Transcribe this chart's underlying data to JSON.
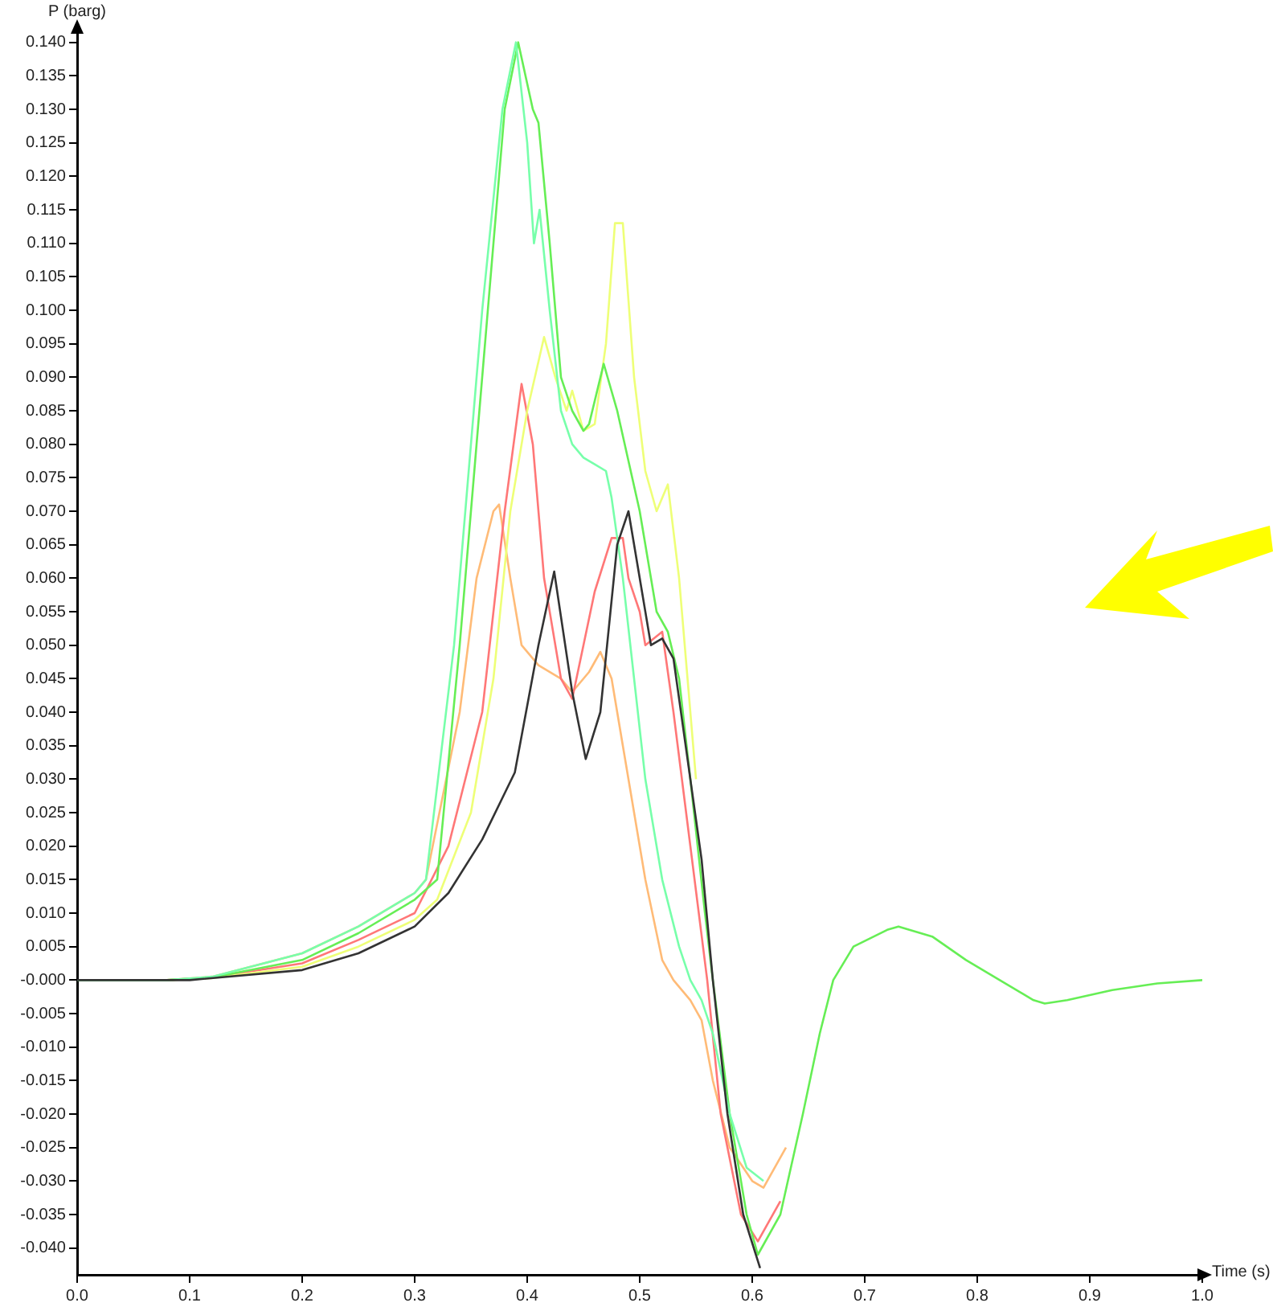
{
  "chart_data": {
    "type": "line",
    "xlabel": "Time (s)",
    "ylabel": "P (barg)",
    "xlim": [
      0,
      1.0
    ],
    "ylim": [
      -0.044,
      0.142
    ],
    "xticks": [
      {
        "value": 0,
        "label": "0.0"
      },
      0.1,
      0.2,
      0.3,
      0.4,
      0.5,
      0.6,
      0.7,
      0.8,
      0.9,
      {
        "value": 1,
        "label": "1.0"
      }
    ],
    "yticks": [
      {
        "value": -0.04,
        "label": "-0.040"
      },
      {
        "value": -0.035,
        "label": "-0.035"
      },
      {
        "value": -0.03,
        "label": "-0.030"
      },
      {
        "value": -0.025,
        "label": "-0.025"
      },
      {
        "value": -0.02,
        "label": "-0.020"
      },
      {
        "value": -0.015,
        "label": "-0.015"
      },
      {
        "value": -0.01,
        "label": "-0.010"
      },
      {
        "value": -0.005,
        "label": "-0.005"
      },
      {
        "value": 0,
        "label": "-0.000"
      },
      {
        "value": 0.005,
        "label": "0.005"
      },
      {
        "value": 0.01,
        "label": "0.010"
      },
      {
        "value": 0.015,
        "label": "0.015"
      },
      {
        "value": 0.02,
        "label": "0.020"
      },
      {
        "value": 0.025,
        "label": "0.025"
      },
      {
        "value": 0.03,
        "label": "0.030"
      },
      {
        "value": 0.035,
        "label": "0.035"
      },
      {
        "value": 0.04,
        "label": "0.040"
      },
      {
        "value": 0.045,
        "label": "0.045"
      },
      {
        "value": 0.05,
        "label": "0.050"
      },
      {
        "value": 0.055,
        "label": "0.055"
      },
      {
        "value": 0.06,
        "label": "0.060"
      },
      {
        "value": 0.065,
        "label": "0.065"
      },
      {
        "value": 0.07,
        "label": "0.070"
      },
      {
        "value": 0.075,
        "label": "0.075"
      },
      {
        "value": 0.08,
        "label": "0.080"
      },
      {
        "value": 0.085,
        "label": "0.085"
      },
      {
        "value": 0.09,
        "label": "0.090"
      },
      {
        "value": 0.095,
        "label": "0.095"
      },
      {
        "value": 0.1,
        "label": "0.100"
      },
      {
        "value": 0.105,
        "label": "0.105"
      },
      {
        "value": 0.11,
        "label": "0.110"
      },
      {
        "value": 0.115,
        "label": "0.115"
      },
      {
        "value": 0.12,
        "label": "0.120"
      },
      {
        "value": 0.125,
        "label": "0.125"
      },
      {
        "value": 0.13,
        "label": "0.130"
      },
      {
        "value": 0.135,
        "label": "0.135"
      },
      {
        "value": 0.14,
        "label": "0.140"
      }
    ],
    "grid": false,
    "legend": false,
    "marker": "none",
    "line_style": "solid",
    "series": [
      {
        "color": "#ffbb77",
        "x": [
          0,
          0.08,
          0.12,
          0.2,
          0.25,
          0.3,
          0.31,
          0.34,
          0.355,
          0.37,
          0.375,
          0.385,
          0.395,
          0.41,
          0.43,
          0.44,
          0.455,
          0.465,
          0.475,
          0.485,
          0.495,
          0.505,
          0.515,
          0.52,
          0.53,
          0.545,
          0.555,
          0.565,
          0.58,
          0.6,
          0.61,
          0.63
        ],
        "values": [
          0,
          0,
          0.0005,
          0.004,
          0.008,
          0.013,
          0.015,
          0.04,
          0.06,
          0.07,
          0.071,
          0.06,
          0.05,
          0.047,
          0.045,
          0.043,
          0.046,
          0.049,
          0.045,
          0.035,
          0.025,
          0.015,
          0.007,
          0.003,
          0,
          -0.003,
          -0.006,
          -0.015,
          -0.025,
          -0.03,
          -0.031,
          -0.025
        ]
      },
      {
        "color": "#ff7777",
        "x": [
          0,
          0.08,
          0.12,
          0.2,
          0.25,
          0.3,
          0.33,
          0.36,
          0.38,
          0.395,
          0.405,
          0.415,
          0.43,
          0.44,
          0.45,
          0.46,
          0.475,
          0.485,
          0.49,
          0.5,
          0.505,
          0.52,
          0.53,
          0.545,
          0.56,
          0.572,
          0.59,
          0.605,
          0.625
        ],
        "values": [
          0,
          0,
          0.0004,
          0.0025,
          0.006,
          0.01,
          0.02,
          0.04,
          0.07,
          0.089,
          0.08,
          0.06,
          0.045,
          0.042,
          0.05,
          0.058,
          0.066,
          0.066,
          0.06,
          0.055,
          0.05,
          0.052,
          0.04,
          0.02,
          0,
          -0.02,
          -0.035,
          -0.039,
          -0.033
        ]
      },
      {
        "color": "#eeff77",
        "x": [
          0,
          0.08,
          0.12,
          0.2,
          0.25,
          0.3,
          0.32,
          0.35,
          0.37,
          0.385,
          0.4,
          0.415,
          0.425,
          0.435,
          0.44,
          0.45,
          0.46,
          0.47,
          0.478,
          0.485,
          0.495,
          0.505,
          0.515,
          0.525,
          0.535,
          0.55
        ],
        "values": [
          0,
          0,
          0.0003,
          0.002,
          0.005,
          0.009,
          0.012,
          0.025,
          0.045,
          0.07,
          0.085,
          0.096,
          0.09,
          0.085,
          0.088,
          0.082,
          0.083,
          0.095,
          0.113,
          0.113,
          0.09,
          0.076,
          0.07,
          0.074,
          0.06,
          0.03
        ]
      },
      {
        "color": "#66ee55",
        "x": [
          0,
          0.08,
          0.12,
          0.2,
          0.25,
          0.3,
          0.32,
          0.34,
          0.365,
          0.38,
          0.392,
          0.405,
          0.41,
          0.42,
          0.43,
          0.44,
          0.45,
          0.455,
          0.468,
          0.48,
          0.5,
          0.515,
          0.525,
          0.535,
          0.545,
          0.558,
          0.565,
          0.58,
          0.595,
          0.605,
          0.625,
          0.645,
          0.66,
          0.672,
          0.69,
          0.72,
          0.73,
          0.76,
          0.79,
          0.82,
          0.85,
          0.86,
          0.88,
          0.92,
          0.96,
          1.0
        ],
        "values": [
          0,
          0,
          0.0004,
          0.003,
          0.007,
          0.012,
          0.015,
          0.05,
          0.1,
          0.13,
          0.14,
          0.13,
          0.128,
          0.11,
          0.09,
          0.085,
          0.082,
          0.083,
          0.092,
          0.085,
          0.07,
          0.055,
          0.052,
          0.045,
          0.03,
          0.01,
          0,
          -0.02,
          -0.035,
          -0.041,
          -0.035,
          -0.02,
          -0.008,
          0,
          0.005,
          0.0075,
          0.008,
          0.0065,
          0.003,
          0,
          -0.003,
          -0.0035,
          -0.003,
          -0.0015,
          -0.0005,
          0
        ]
      },
      {
        "color": "#77ffaa",
        "x": [
          0,
          0.08,
          0.12,
          0.2,
          0.25,
          0.3,
          0.31,
          0.335,
          0.36,
          0.378,
          0.39,
          0.4,
          0.406,
          0.411,
          0.42,
          0.43,
          0.44,
          0.45,
          0.46,
          0.47,
          0.475,
          0.485,
          0.495,
          0.505,
          0.52,
          0.535,
          0.545,
          0.555,
          0.565,
          0.58,
          0.595,
          0.61
        ],
        "values": [
          0,
          0,
          0.0005,
          0.004,
          0.008,
          0.013,
          0.015,
          0.05,
          0.1,
          0.13,
          0.14,
          0.125,
          0.11,
          0.115,
          0.1,
          0.085,
          0.08,
          0.078,
          0.077,
          0.076,
          0.072,
          0.06,
          0.045,
          0.03,
          0.015,
          0.005,
          0,
          -0.003,
          -0.008,
          -0.02,
          -0.028,
          -0.03
        ]
      },
      {
        "color": "#333333",
        "x": [
          0,
          0.1,
          0.2,
          0.25,
          0.3,
          0.33,
          0.36,
          0.389,
          0.41,
          0.424,
          0.44,
          0.452,
          0.465,
          0.48,
          0.49,
          0.5,
          0.51,
          0.52,
          0.53,
          0.545,
          0.555,
          0.565,
          0.578,
          0.592,
          0.607
        ],
        "values": [
          0,
          0,
          0.0015,
          0.004,
          0.008,
          0.013,
          0.021,
          0.031,
          0.05,
          0.061,
          0.043,
          0.033,
          0.04,
          0.065,
          0.07,
          0.06,
          0.05,
          0.051,
          0.048,
          0.03,
          0.018,
          0,
          -0.02,
          -0.035,
          -0.043
        ]
      }
    ]
  }
}
